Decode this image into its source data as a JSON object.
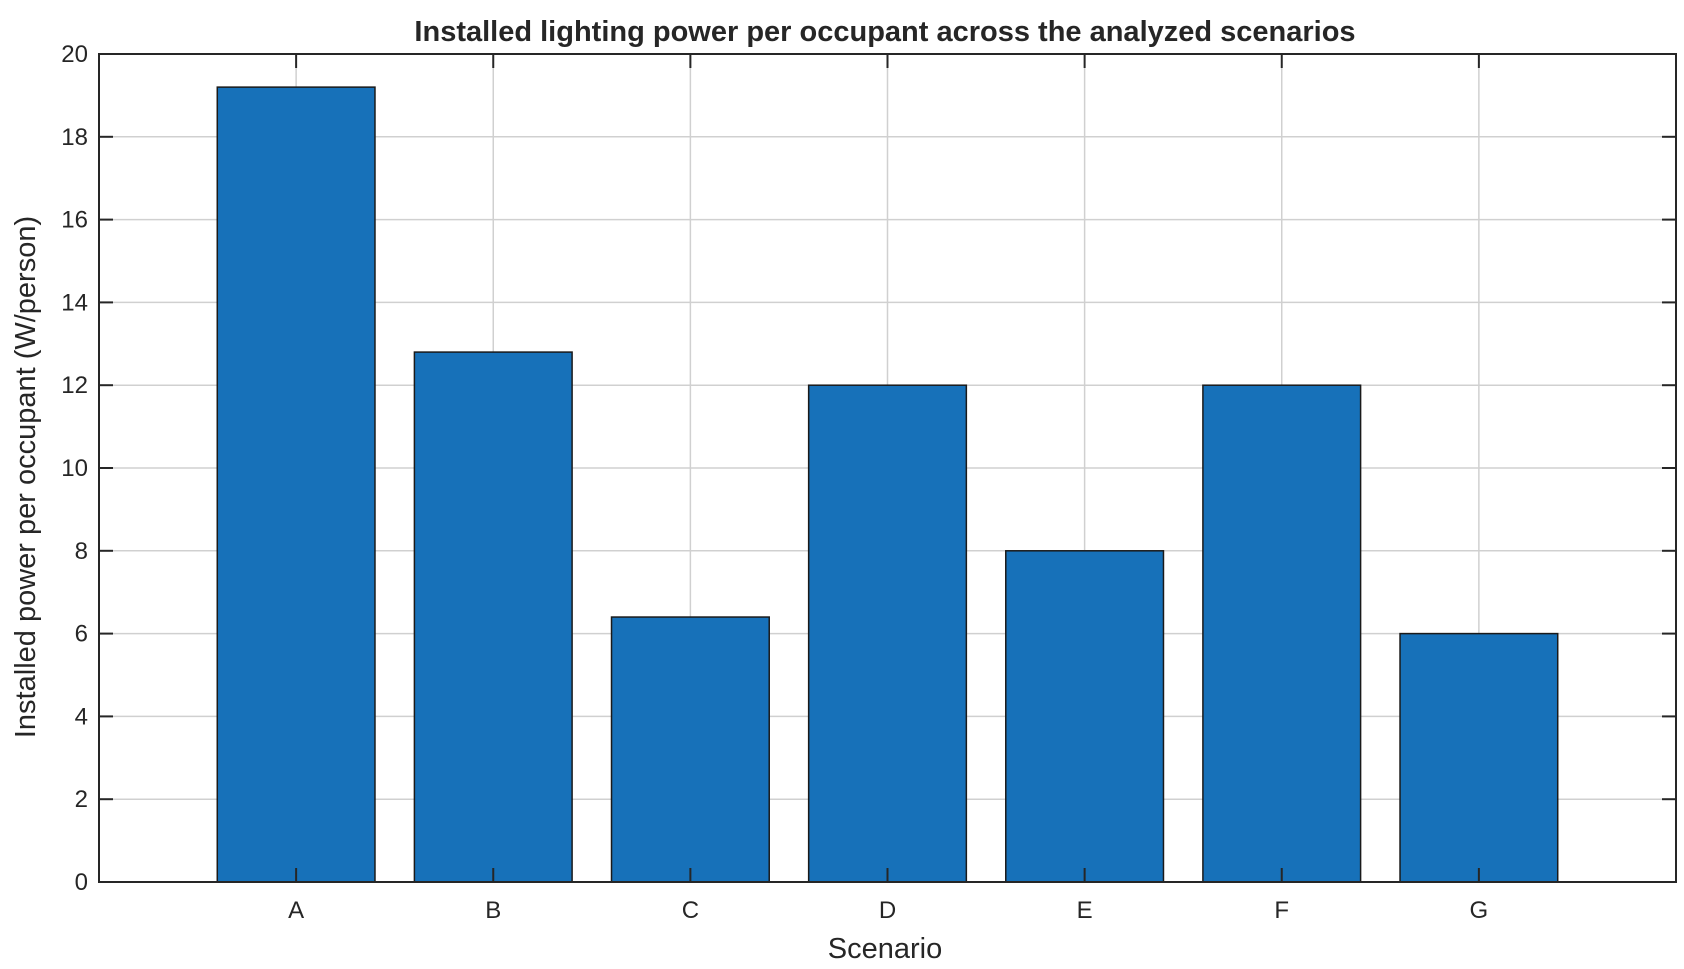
{
  "chart_data": {
    "type": "bar",
    "title": "Installed lighting power per occupant across the analyzed scenarios",
    "xlabel": "Scenario",
    "ylabel": "Installed power per occupant (W/person)",
    "categories": [
      "A",
      "B",
      "C",
      "D",
      "E",
      "F",
      "G"
    ],
    "values": [
      19.2,
      12.8,
      6.4,
      12.0,
      8.0,
      12.0,
      6.0
    ],
    "ylim": [
      0,
      20
    ],
    "yticks": [
      0,
      2,
      4,
      6,
      8,
      10,
      12,
      14,
      16,
      18,
      20
    ],
    "grid": true,
    "legend": "none",
    "colors": {
      "bar": "#1771b9",
      "bar_edge": "#1a1a1a",
      "grid": "#d0d0d0",
      "axis": "#262626",
      "text": "#262626"
    }
  }
}
